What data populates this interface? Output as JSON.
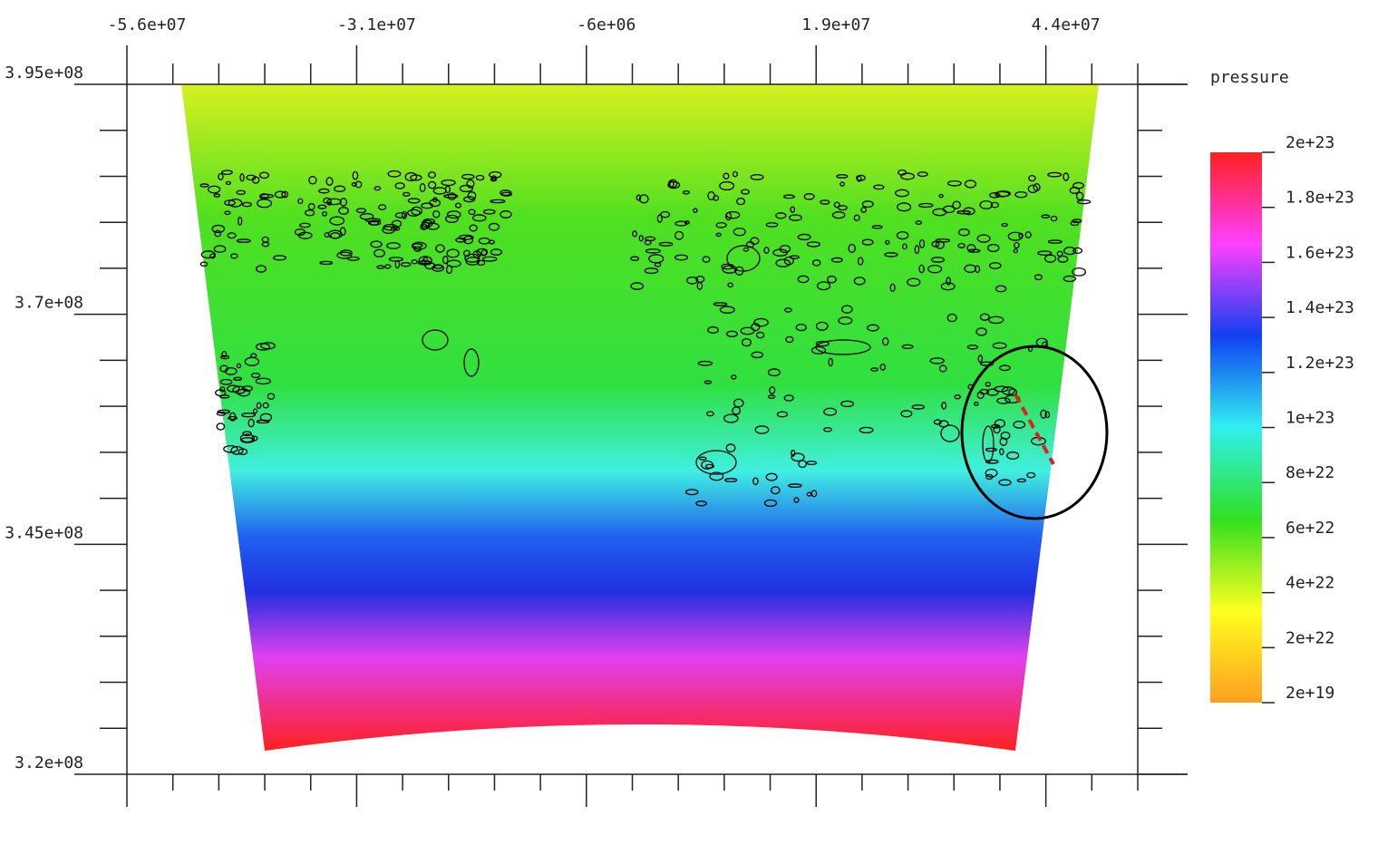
{
  "chart_data": {
    "type": "pseudocolor",
    "xlim": [
      -56000000,
      54000000
    ],
    "xticks": [
      {
        "value": -56000000,
        "label": "-5.6e+07"
      },
      {
        "value": -31000000,
        "label": "-3.1e+07"
      },
      {
        "value": -6000000,
        "label": "-6e+06"
      },
      {
        "value": 19000000,
        "label": "1.9e+07"
      },
      {
        "value": 44000000,
        "label": "4.4e+07"
      }
    ],
    "ylim": [
      320000000,
      395000000
    ],
    "yticks": [
      {
        "value": 395000000,
        "label": "3.95e+08"
      },
      {
        "value": 370000000,
        "label": "3.7e+08"
      },
      {
        "value": 345000000,
        "label": "3.45e+08"
      },
      {
        "value": 320000000,
        "label": "3.2e+08"
      }
    ],
    "colorbar": {
      "title": "pressure",
      "lim": [
        2e+19,
        2e+23
      ],
      "ticks": [
        {
          "value": 2e+23,
          "label": "2e+23"
        },
        {
          "value": 1.8e+23,
          "label": "1.8e+23"
        },
        {
          "value": 1.6e+23,
          "label": "1.6e+23"
        },
        {
          "value": 1.4e+23,
          "label": "1.4e+23"
        },
        {
          "value": 1.2e+23,
          "label": "1.2e+23"
        },
        {
          "value": 1e+23,
          "label": "1e+23"
        },
        {
          "value": 8e+22,
          "label": "8e+22"
        },
        {
          "value": 6e+22,
          "label": "6e+22"
        },
        {
          "value": 4e+22,
          "label": "4e+22"
        },
        {
          "value": 2e+22,
          "label": "2e+22"
        },
        {
          "value": 2e+19,
          "label": "2e+19"
        }
      ],
      "colormap": [
        "#ff9f20",
        "#ffff20",
        "#30e020",
        "#30f0f0",
        "#1040f0",
        "#ff40ff",
        "#ff2020"
      ]
    }
  }
}
